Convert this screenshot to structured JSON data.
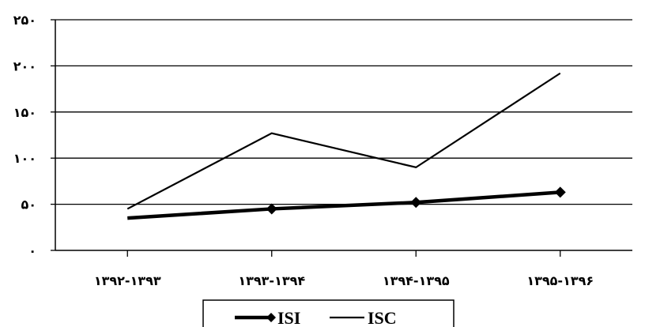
{
  "chart_data": {
    "type": "line",
    "categories": [
      "۱۳۹۲-۱۳۹۳",
      "۱۳۹۳-۱۳۹۴",
      "۱۳۹۴-۱۳۹۵",
      "۱۳۹۵-۱۳۹۶"
    ],
    "series": [
      {
        "name": "ISI",
        "values": [
          35,
          45,
          52,
          63
        ],
        "color": "#000000",
        "marker": "diamond",
        "style": "thick"
      },
      {
        "name": "ISC",
        "values": [
          45,
          127,
          90,
          192
        ],
        "color": "#000000",
        "marker": "none",
        "style": "thin"
      }
    ],
    "ylim": [
      0,
      250
    ],
    "y_ticks": [
      0,
      50,
      100,
      150,
      200,
      250
    ],
    "y_tick_labels": [
      "۰",
      "۵۰",
      "۱۰۰",
      "۱۵۰",
      "۲۰۰",
      "۲۵۰"
    ],
    "grid": "horizontal",
    "legend_position": "bottom-center",
    "title": "",
    "xlabel": "",
    "ylabel": ""
  }
}
